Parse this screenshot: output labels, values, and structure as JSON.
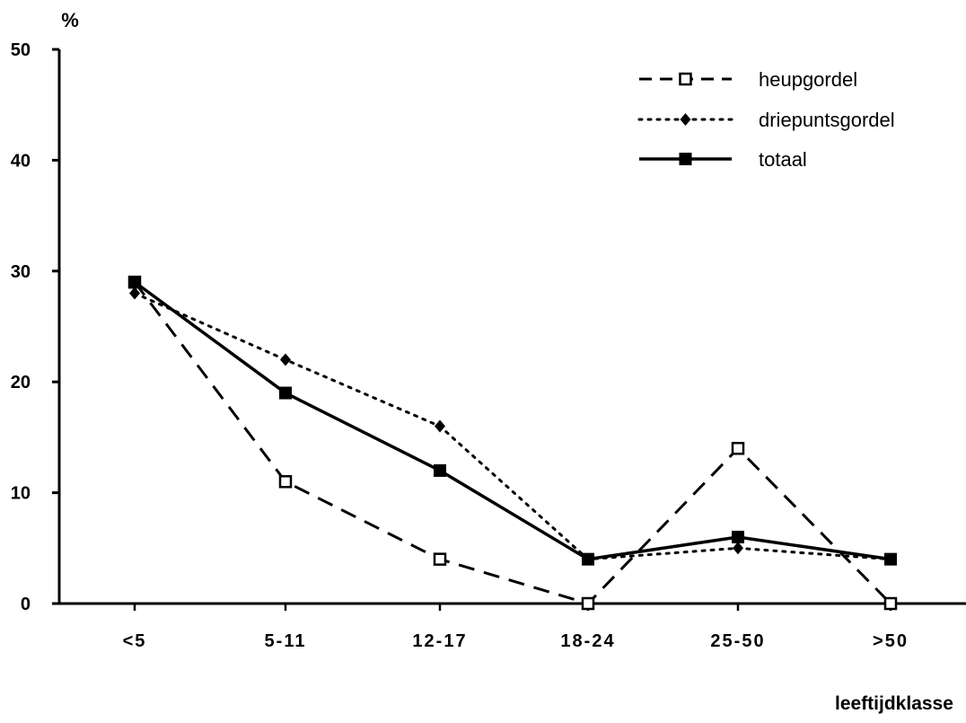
{
  "chart_data": {
    "type": "line",
    "title": "",
    "ylabel": "%",
    "xlabel": "leeftijdklasse",
    "ylim": [
      0,
      50
    ],
    "yticks": [
      0,
      10,
      20,
      30,
      40,
      50
    ],
    "categories": [
      "<5",
      "5-11",
      "12-17",
      "18-24",
      "25-50",
      ">50"
    ],
    "grid": false,
    "legend_position": "top-right",
    "series": [
      {
        "name": "heupgordel",
        "values": [
          29,
          11,
          4,
          0,
          14,
          0
        ],
        "line_style": "dashed",
        "marker": "open-square",
        "color": "#000000"
      },
      {
        "name": "driepuntsgordel",
        "values": [
          28,
          22,
          16,
          4,
          5,
          4
        ],
        "line_style": "dotted",
        "marker": "diamond",
        "color": "#000000"
      },
      {
        "name": "totaal",
        "values": [
          29,
          19,
          12,
          4,
          6,
          4
        ],
        "line_style": "solid",
        "marker": "filled-square",
        "color": "#000000"
      }
    ]
  }
}
